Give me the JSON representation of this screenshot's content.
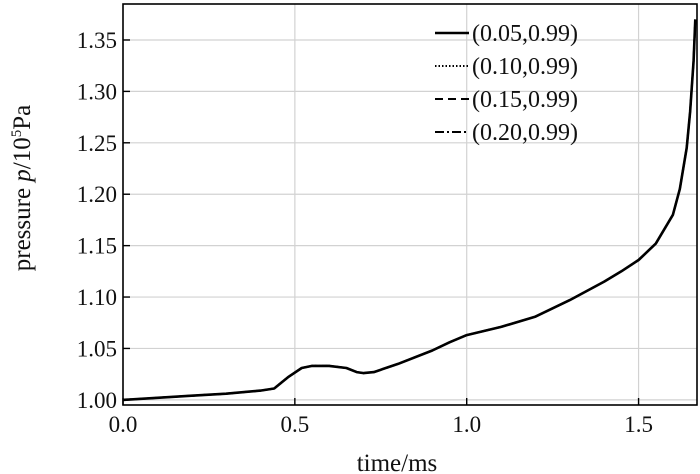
{
  "chart_data": {
    "type": "line",
    "title": "",
    "xlabel": "time/ms",
    "ylabel": {
      "prefix": "pressure ",
      "symbol": "p",
      "unit_base": "/10",
      "unit_exp": "5",
      "unit_tail": "Pa"
    },
    "xlim": [
      0.0,
      1.67
    ],
    "ylim": [
      0.995,
      1.385
    ],
    "x_ticks": [
      "0.0",
      "0.5",
      "1.0",
      "1.5"
    ],
    "x_tick_values": [
      0.0,
      0.5,
      1.0,
      1.5
    ],
    "y_ticks": [
      "1.00",
      "1.05",
      "1.10",
      "1.15",
      "1.20",
      "1.25",
      "1.30",
      "1.35"
    ],
    "y_tick_values": [
      1.0,
      1.05,
      1.1,
      1.15,
      1.2,
      1.25,
      1.3,
      1.35
    ],
    "grid": true,
    "legend_position": "top-right",
    "series": [
      {
        "name": "(0.05,0.99)",
        "line_style": "solid",
        "x": [
          0.0,
          0.1,
          0.2,
          0.3,
          0.4,
          0.44,
          0.48,
          0.52,
          0.55,
          0.6,
          0.65,
          0.68,
          0.7,
          0.73,
          0.8,
          0.9,
          0.95,
          1.0,
          1.05,
          1.1,
          1.2,
          1.3,
          1.4,
          1.45,
          1.5,
          1.55,
          1.6,
          1.62,
          1.64,
          1.65,
          1.66,
          1.665
        ],
        "y": [
          1.0,
          1.002,
          1.004,
          1.006,
          1.009,
          1.011,
          1.022,
          1.031,
          1.033,
          1.033,
          1.031,
          1.027,
          1.026,
          1.027,
          1.035,
          1.048,
          1.056,
          1.063,
          1.067,
          1.071,
          1.081,
          1.097,
          1.115,
          1.125,
          1.136,
          1.152,
          1.18,
          1.205,
          1.245,
          1.28,
          1.33,
          1.37
        ]
      },
      {
        "name": "(0.10,0.99)",
        "line_style": "dotted",
        "x": [
          0.0,
          0.1,
          0.2,
          0.3,
          0.4,
          0.44,
          0.48,
          0.52,
          0.55,
          0.6,
          0.65,
          0.68,
          0.7,
          0.73,
          0.8,
          0.9,
          0.95,
          1.0,
          1.05,
          1.1,
          1.2,
          1.3,
          1.4,
          1.45,
          1.5,
          1.55,
          1.6,
          1.62,
          1.64,
          1.65,
          1.66,
          1.665
        ],
        "y": [
          1.0,
          1.002,
          1.004,
          1.006,
          1.009,
          1.011,
          1.022,
          1.031,
          1.033,
          1.033,
          1.031,
          1.027,
          1.026,
          1.027,
          1.035,
          1.048,
          1.056,
          1.063,
          1.067,
          1.071,
          1.081,
          1.097,
          1.115,
          1.125,
          1.136,
          1.152,
          1.18,
          1.205,
          1.245,
          1.28,
          1.33,
          1.37
        ]
      },
      {
        "name": "(0.15,0.99)",
        "line_style": "dashed",
        "x": [
          0.0,
          0.1,
          0.2,
          0.3,
          0.4,
          0.44,
          0.48,
          0.52,
          0.55,
          0.6,
          0.65,
          0.68,
          0.7,
          0.73,
          0.8,
          0.9,
          0.95,
          1.0,
          1.05,
          1.1,
          1.2,
          1.3,
          1.4,
          1.45,
          1.5,
          1.55,
          1.6,
          1.62,
          1.64,
          1.65,
          1.66,
          1.665
        ],
        "y": [
          1.0,
          1.002,
          1.004,
          1.006,
          1.009,
          1.011,
          1.022,
          1.031,
          1.033,
          1.033,
          1.031,
          1.027,
          1.026,
          1.027,
          1.035,
          1.048,
          1.056,
          1.063,
          1.067,
          1.071,
          1.081,
          1.097,
          1.115,
          1.125,
          1.136,
          1.152,
          1.18,
          1.205,
          1.245,
          1.28,
          1.33,
          1.37
        ]
      },
      {
        "name": "(0.20,0.99)",
        "line_style": "dash-dot",
        "x": [
          0.0,
          0.1,
          0.2,
          0.3,
          0.4,
          0.44,
          0.48,
          0.52,
          0.55,
          0.6,
          0.65,
          0.68,
          0.7,
          0.73,
          0.8,
          0.9,
          0.95,
          1.0,
          1.05,
          1.1,
          1.2,
          1.3,
          1.4,
          1.45,
          1.5,
          1.55,
          1.6,
          1.62,
          1.64,
          1.65,
          1.66,
          1.665
        ],
        "y": [
          1.0,
          1.002,
          1.004,
          1.006,
          1.009,
          1.011,
          1.022,
          1.031,
          1.033,
          1.033,
          1.031,
          1.027,
          1.026,
          1.027,
          1.035,
          1.048,
          1.056,
          1.063,
          1.067,
          1.071,
          1.081,
          1.097,
          1.115,
          1.125,
          1.136,
          1.152,
          1.18,
          1.205,
          1.245,
          1.28,
          1.33,
          1.37
        ]
      }
    ]
  }
}
